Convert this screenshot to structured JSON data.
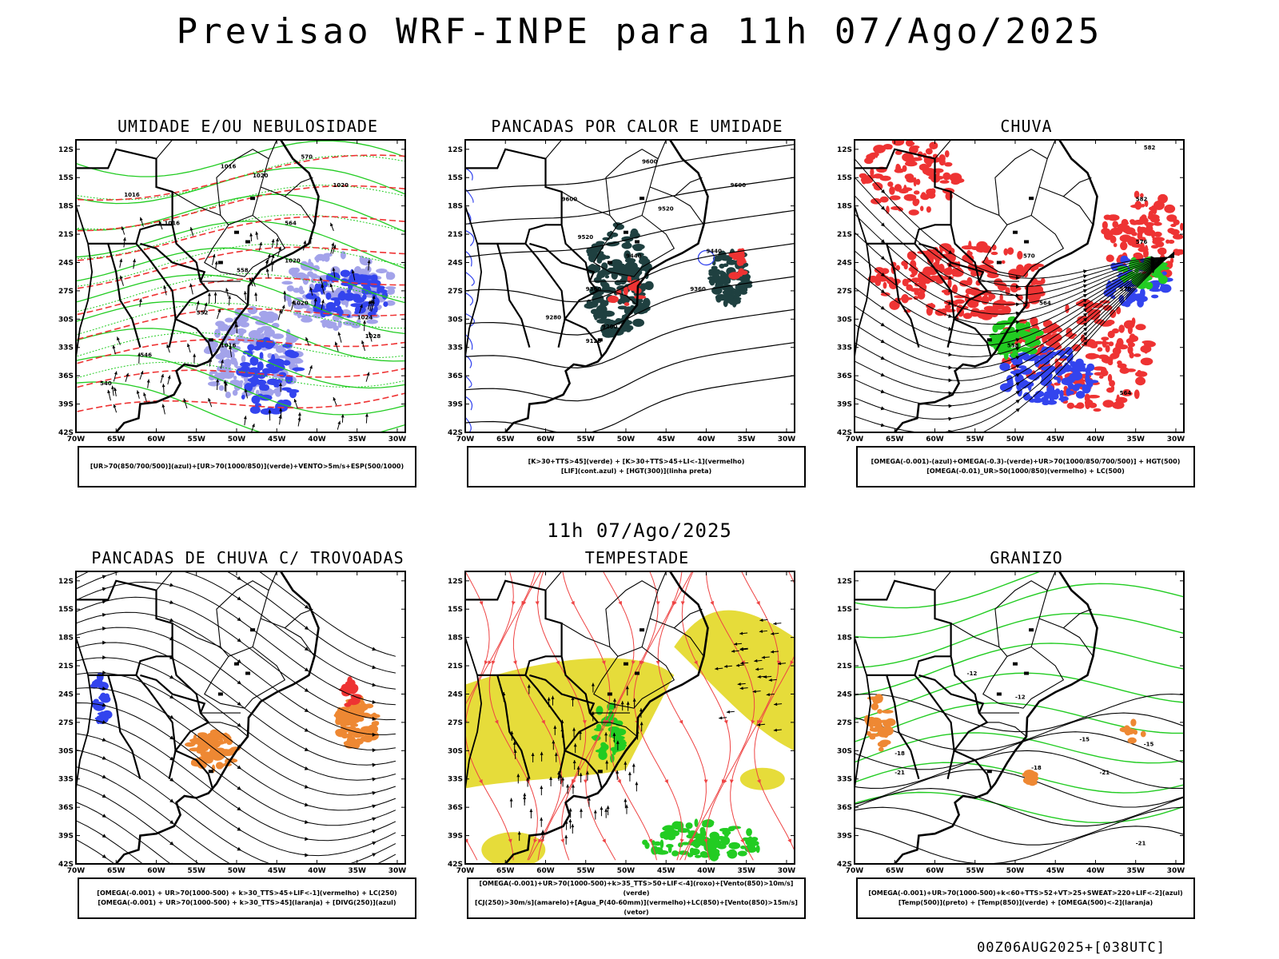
{
  "header": {
    "main_title": "Previsao WRF-INPE  para 11h 07/Ago/2025",
    "mid_title": "11h 07/Ago/2025",
    "footer": "00Z06AUG2025+[038UTC]"
  },
  "axes": {
    "lat_labels": [
      "12S",
      "15S",
      "18S",
      "21S",
      "24S",
      "27S",
      "30S",
      "33S",
      "36S",
      "39S",
      "42S"
    ],
    "lon_labels": [
      "70W",
      "65W",
      "60W",
      "55W",
      "50W",
      "45W",
      "40W",
      "35W",
      "30W"
    ]
  },
  "colors": {
    "blue": "#3344ee",
    "lavender": "#9a9ae8",
    "green": "#22cc22",
    "red": "#ee3333",
    "orange": "#ee8833",
    "yellow": "#e6dc3a",
    "dark_teal": "#1f4040"
  },
  "panels": [
    {
      "title": "UMIDADE E/OU NEBULOSIDADE",
      "legend": [
        "[UR>70(850/700/500)](azul)+[UR>70(1000/850)](verde)+VENTO>5m/s+ESP(500/1000)"
      ],
      "contour_labels": [
        "1016",
        "1020",
        "1020",
        "1016",
        "1016",
        "1020",
        "1020",
        "1024",
        "1028",
        "1016",
        "570",
        "564",
        "558",
        "552",
        "546",
        "540"
      ]
    },
    {
      "title": "PANCADAS POR CALOR E UMIDADE",
      "legend": [
        "[K>30+TTS>45](verde) + [K>30+TTS>45+LI<-1](vermelho)",
        "[LIF](cont.azul) + [HGT(300)](linha preta)"
      ],
      "contour_labels": [
        "9600",
        "9600",
        "9520",
        "9520",
        "9440",
        "9360",
        "9280",
        "9200",
        "9120",
        "9360",
        "9440",
        "9600"
      ]
    },
    {
      "title": "CHUVA",
      "legend": [
        "[OMEGA(-0.001)-(azul)+OMEGA(-0.3)-(verde)+UR>70(1000/850/700/500)] + HGT(500)",
        "[OMEGA(-0.01)_UR>50(1000/850)(vermelho) + LC(500)"
      ],
      "contour_labels": [
        "582",
        "582",
        "576",
        "570",
        "564",
        "564",
        "558",
        "570"
      ]
    },
    {
      "title": "PANCADAS DE CHUVA C/ TROVOADAS",
      "legend": [
        "[OMEGA(-0.001) + UR>70(1000-500) + k>30_TTS>45+LIF<-1](vermelho) + LC(250)",
        "[OMEGA(-0.001) + UR>70(1000-500) + k>30_TTS>45](laranja) + [DIVG(250)](azul)"
      ],
      "contour_labels": []
    },
    {
      "title": "TEMPESTADE",
      "legend": [
        "[OMEGA(-0.001)+UR>70(1000-500)+k>35_TTS>50+LIF<-4](roxo)+[Vento(850)>10m/s](verde)",
        "[CJ(250)>30m/s](amarelo)+[Agua_P(40-60mm)](vermelho)+LC(850)+[Vento(850)>15m/s](vetor)"
      ],
      "contour_labels": []
    },
    {
      "title": "GRANIZO",
      "legend": [
        "[OMEGA(-0.001)+UR>70(1000-500)+k<60+TTS>52+VT>25+SWEAT>220+LIF<-2](azul)",
        "[Temp(500)](preto) + [Temp(850)](verde) + [OMEGA(500)<-2](laranja)"
      ],
      "contour_labels": [
        "-12",
        "-15",
        "-18",
        "-21",
        "-21",
        "-15",
        "-18",
        "-21",
        "-12"
      ]
    }
  ]
}
